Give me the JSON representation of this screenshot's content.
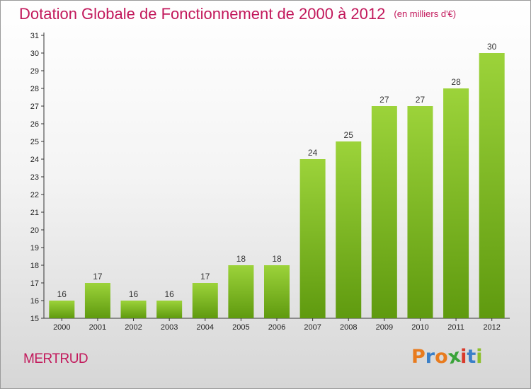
{
  "title": "Dotation Globale de Fonctionnement de 2000 à 2012",
  "unit": "(en milliers d'€)",
  "commune": "MERTRUD",
  "logo": {
    "letters": [
      "P",
      "r",
      "o",
      "x",
      "i",
      "t",
      "i"
    ],
    "colors": [
      "#e87b1e",
      "#3a7fc8",
      "#e87b1e",
      "#3aa33a",
      "#d93a2b",
      "#3a7fc8",
      "#8cbf2a"
    ]
  },
  "colors": {
    "bar_top": "#9cd33a",
    "bar_bottom": "#5f9a0f",
    "title": "#c2185b"
  },
  "chart_data": {
    "type": "bar",
    "categories": [
      "2000",
      "2001",
      "2002",
      "2003",
      "2004",
      "2005",
      "2006",
      "2007",
      "2008",
      "2009",
      "2010",
      "2011",
      "2012"
    ],
    "values": [
      16,
      17,
      16,
      16,
      17,
      18,
      18,
      24,
      25,
      27,
      27,
      28,
      30
    ],
    "ylim": [
      15,
      31
    ],
    "yticks": [
      15,
      16,
      17,
      18,
      19,
      20,
      21,
      22,
      23,
      24,
      25,
      26,
      27,
      28,
      29,
      30,
      31
    ],
    "grid": false
  }
}
